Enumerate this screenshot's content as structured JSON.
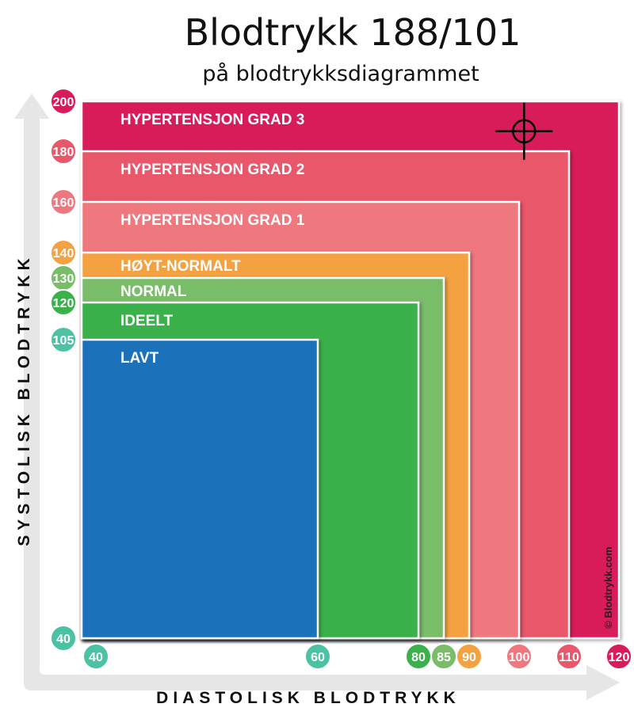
{
  "chart_data": {
    "type": "area",
    "title": "Blodtrykk 188/101",
    "subtitle": "på blodtrykksdiagrammet",
    "xlabel": "DIASTOLISK BLODTRYKK",
    "ylabel": "SYSTOLISK BLODTRYKK",
    "credit": "© Blodtrykk.com",
    "marker": {
      "systolic": 188,
      "diastolic": 101
    },
    "zones": [
      {
        "label": "HYPERTENSJON GRAD 3",
        "systolic_max": 200,
        "diastolic_max": 120,
        "color": "#d81b5a"
      },
      {
        "label": "HYPERTENSJON GRAD 2",
        "systolic_max": 180,
        "diastolic_max": 110,
        "color": "#e9586a"
      },
      {
        "label": "HYPERTENSJON GRAD 1",
        "systolic_max": 160,
        "diastolic_max": 100,
        "color": "#ef787f"
      },
      {
        "label": "HØYT-NORMALT",
        "systolic_max": 140,
        "diastolic_max": 90,
        "color": "#f4a142"
      },
      {
        "label": "NORMAL",
        "systolic_max": 130,
        "diastolic_max": 85,
        "color": "#79bd68"
      },
      {
        "label": "IDEELT",
        "systolic_max": 120,
        "diastolic_max": 80,
        "color": "#3ab14b"
      },
      {
        "label": "LAVT",
        "systolic_max": 105,
        "diastolic_max": 60,
        "color": "#1f72ba"
      }
    ],
    "y_ticks": [
      {
        "label": "200",
        "color": "#d81b5a"
      },
      {
        "label": "180",
        "color": "#e9586a"
      },
      {
        "label": "160",
        "color": "#ef787f"
      },
      {
        "label": "140",
        "color": "#f4a142"
      },
      {
        "label": "130",
        "color": "#79bd68"
      },
      {
        "label": "120",
        "color": "#3ab14b"
      },
      {
        "label": "105",
        "color": "#4cc2a4"
      },
      {
        "label": "40",
        "color": "#4cc2a4"
      }
    ],
    "x_ticks": [
      {
        "label": "40",
        "color": "#4cc2a4"
      },
      {
        "label": "60",
        "color": "#4cc2a4"
      },
      {
        "label": "80",
        "color": "#3ab14b"
      },
      {
        "label": "85",
        "color": "#79bd68"
      },
      {
        "label": "90",
        "color": "#f4a142"
      },
      {
        "label": "100",
        "color": "#ef787f"
      },
      {
        "label": "110",
        "color": "#e9586a"
      },
      {
        "label": "120",
        "color": "#d81b5a"
      }
    ]
  }
}
